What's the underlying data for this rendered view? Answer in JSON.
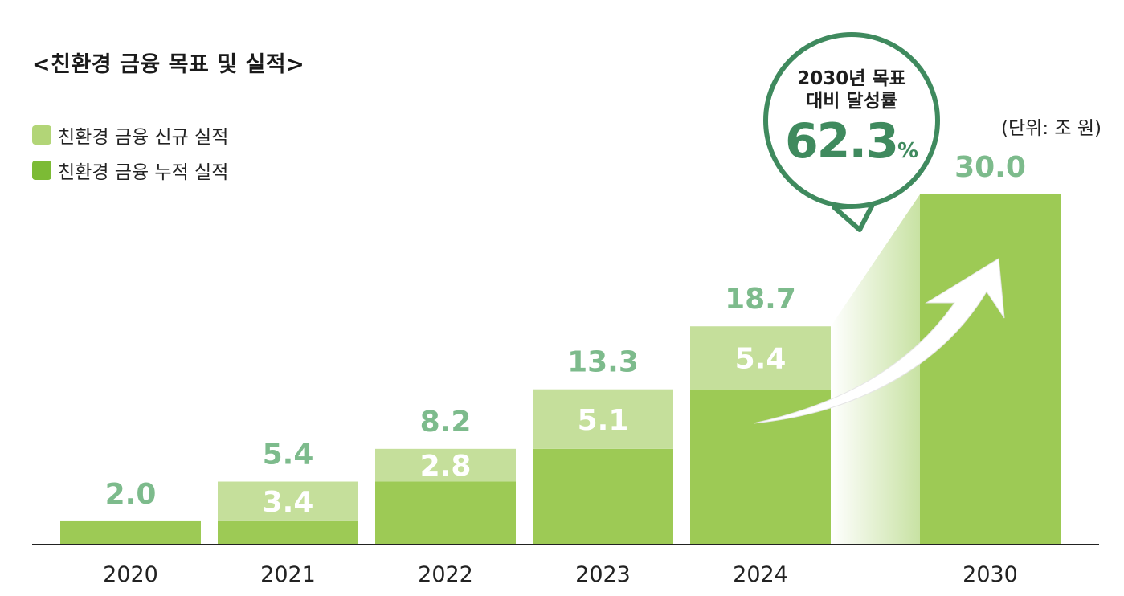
{
  "title": "<친환경 금융 목표 및 실적>",
  "unit": "(단위: 조 원)",
  "legend": {
    "new": "친환경 금융 신규 실적",
    "cumulative": "친환경 금융 누적 실적"
  },
  "colors": {
    "new": "#c5df9b",
    "cumulative": "#9dca55",
    "legend_new": "#b2d577",
    "legend_cumulative": "#7cbb35",
    "total_label": "#7dbb8c",
    "bubble": "#3f8a5e"
  },
  "bubble": {
    "line1": "2030년 목표",
    "line2": "대비  달성률",
    "value": "62.3",
    "unit": "%"
  },
  "chart_data": {
    "type": "bar",
    "stacked": true,
    "categories": [
      "2020",
      "2021",
      "2022",
      "2023",
      "2024",
      "2030"
    ],
    "series": [
      {
        "name": "친환경 금융 누적 실적",
        "values": [
          2.0,
          2.0,
          5.4,
          8.2,
          13.3,
          30.0
        ]
      },
      {
        "name": "친환경 금융 신규 실적",
        "values": [
          0,
          3.4,
          2.8,
          5.1,
          5.4,
          0
        ]
      }
    ],
    "new_labels": [
      "",
      "3.4",
      "2.8",
      "5.1",
      "5.4",
      ""
    ],
    "total_labels": [
      "2.0",
      "5.4",
      "8.2",
      "13.3",
      "18.7",
      "30.0"
    ],
    "ylim": [
      0,
      30
    ],
    "xlabel": "",
    "ylabel": ""
  }
}
